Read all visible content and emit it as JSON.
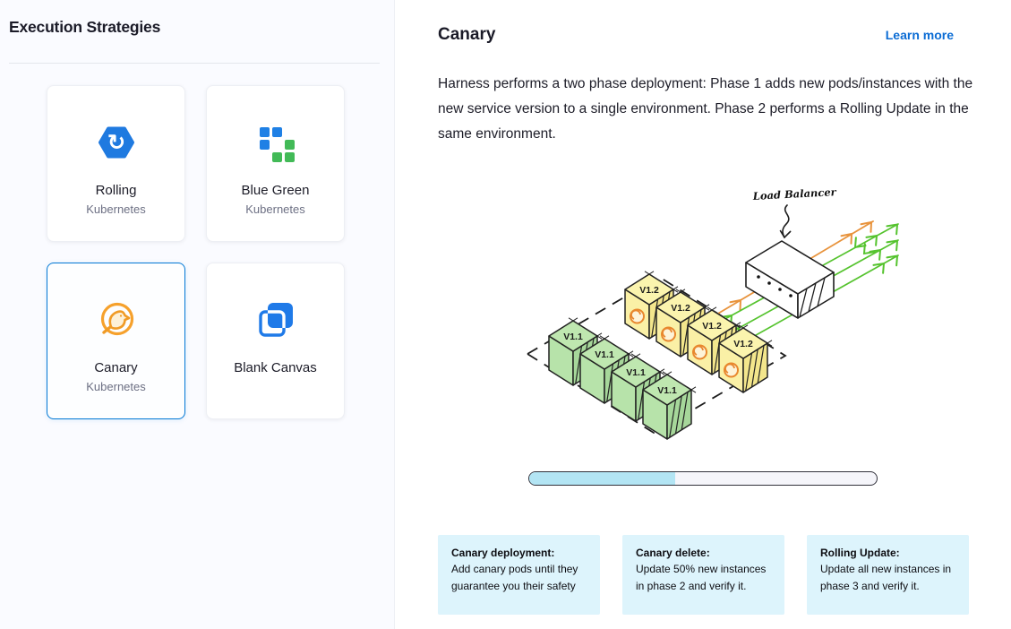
{
  "left_panel": {
    "title": "Execution Strategies",
    "cards": [
      {
        "label": "Rolling",
        "sublabel": "Kubernetes",
        "icon": "rolling-icon",
        "selected": false
      },
      {
        "label": "Blue Green",
        "sublabel": "Kubernetes",
        "icon": "blue-green-icon",
        "selected": false
      },
      {
        "label": "Canary",
        "sublabel": "Kubernetes",
        "icon": "canary-bird-icon",
        "selected": true
      },
      {
        "label": "Blank Canvas",
        "sublabel": "",
        "icon": "blank-canvas-icon",
        "selected": false
      }
    ]
  },
  "detail_panel": {
    "title": "Canary",
    "learn_more_label": "Learn more",
    "description": "Harness performs a two phase deployment: Phase 1 adds new pods/instances with the new service version to a single environment. Phase 2 performs a Rolling Update in the same environment.",
    "diagram": {
      "load_balancer_label": "Load Balancer",
      "new_version_label": "V1.2",
      "old_version_label": "V1.1",
      "new_version_count": 4,
      "old_version_count": 4
    },
    "progress_percent": 42,
    "phases": [
      {
        "title": "Canary deployment:",
        "body": "Add canary pods until they guarantee you their safety"
      },
      {
        "title": "Canary delete:",
        "body": "Update 50% new instances in phase 2 and verify it."
      },
      {
        "title": "Rolling Update:",
        "body": "Update all new instances in phase 3 and verify it."
      }
    ]
  },
  "colors": {
    "accent_blue": "#0278d5",
    "link_blue": "#0b6cd4",
    "icon_blue": "#1f7ae0",
    "success_green": "#42ba57",
    "canary_orange": "#f6a12c",
    "phase_box_bg": "#ddf4fc",
    "progress_fill": "#b3e5f4",
    "left_panel_bg": "#fafbff"
  }
}
